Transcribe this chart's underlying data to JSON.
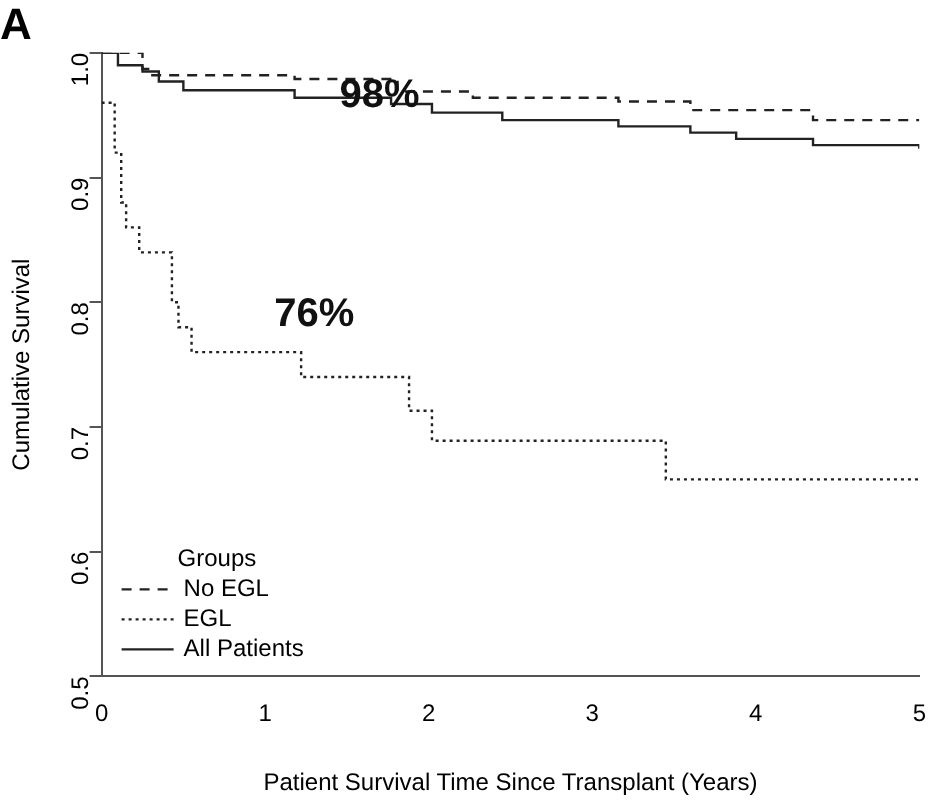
{
  "chart_data": {
    "type": "step",
    "title": "A",
    "xlabel": "Patient Survival Time Since Transplant (Years)",
    "ylabel": "Cumulative Survival",
    "legend_title": "Groups",
    "xlim": [
      0,
      5
    ],
    "xticks": [
      0,
      1,
      2,
      3,
      4,
      5
    ],
    "ylim": [
      0.5,
      1.0
    ],
    "yticks": [
      0.5,
      0.6,
      0.7,
      0.8,
      0.9,
      {
        "value": 1.0,
        "label": "1.0"
      }
    ],
    "grid": false,
    "legend": "bottom left",
    "marker": "none",
    "series": [
      {
        "name": "No EGL",
        "color": "#222222",
        "line_style": "dashed",
        "x": [
          0,
          0.25,
          0.3,
          1.18,
          1.81,
          2.27,
          3.16,
          3.6,
          4.35,
          5
        ],
        "values": [
          1.0,
          0.987,
          0.982,
          0.979,
          0.969,
          0.964,
          0.961,
          0.954,
          0.946,
          0.946
        ]
      },
      {
        "name": "EGL",
        "color": "#222222",
        "line_style": "dotted",
        "x": [
          0,
          0.08,
          0.12,
          0.15,
          0.23,
          0.43,
          0.47,
          0.55,
          1.22,
          1.88,
          2.02,
          3.45,
          5
        ],
        "values": [
          0.96,
          0.92,
          0.88,
          0.86,
          0.84,
          0.8,
          0.78,
          0.76,
          0.74,
          0.713,
          0.689,
          0.658,
          0.658
        ]
      },
      {
        "name": "All Patients",
        "color": "#222222",
        "line_style": "solid",
        "x": [
          0,
          0.1,
          0.25,
          0.35,
          0.5,
          1.18,
          1.77,
          2.02,
          2.45,
          3.16,
          3.6,
          3.88,
          4.35,
          5
        ],
        "values": [
          1.0,
          0.99,
          0.985,
          0.977,
          0.97,
          0.964,
          0.959,
          0.952,
          0.946,
          0.941,
          0.936,
          0.931,
          0.926,
          0.923
        ]
      }
    ],
    "annotations": [
      "98%",
      "76%"
    ]
  }
}
